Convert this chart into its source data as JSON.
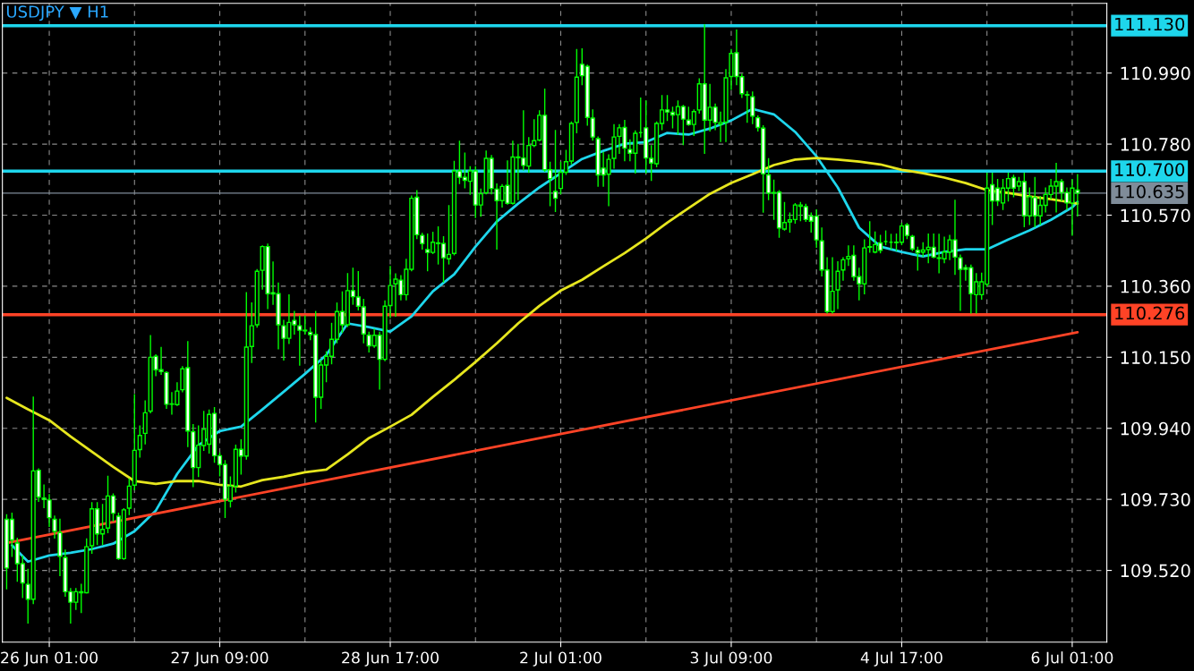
{
  "chart_data": {
    "type": "candlestick",
    "title": "USDJPY ▼ H1",
    "categories": [
      null,
      null,
      null,
      null,
      null,
      null,
      null,
      null,
      "26 Jun 01:00",
      null,
      null,
      null,
      null,
      null,
      null,
      null,
      null,
      null,
      null,
      null,
      null,
      null,
      null,
      null,
      null,
      null,
      null,
      null,
      null,
      null,
      null,
      null,
      null,
      null,
      null,
      null,
      null,
      null,
      null,
      null,
      "27 Jun 09:00",
      null,
      null,
      null,
      null,
      null,
      null,
      null,
      null,
      null,
      null,
      null,
      null,
      null,
      null,
      null,
      null,
      null,
      null,
      null,
      null,
      null,
      null,
      null,
      null,
      null,
      null,
      null,
      null,
      null,
      null,
      null,
      "28 Jun 17:00",
      null,
      null,
      null,
      null,
      null,
      null,
      null,
      null,
      null,
      null,
      null,
      null,
      null,
      null,
      null,
      null,
      null,
      null,
      null,
      null,
      null,
      null,
      null,
      null,
      null,
      null,
      null,
      null,
      null,
      null,
      null,
      "2 Jul 01:00",
      null,
      null,
      null,
      null,
      null,
      null,
      null,
      null,
      null,
      null,
      null,
      null,
      null,
      null,
      null,
      null,
      null,
      null,
      null,
      null,
      null,
      null,
      null,
      null,
      null,
      null,
      null,
      null,
      null,
      null,
      null,
      "3 Jul 09:00",
      null,
      null,
      null,
      null,
      null,
      null,
      null,
      null,
      null,
      null,
      null,
      null,
      null,
      null,
      null,
      null,
      null,
      null,
      null,
      null,
      null,
      null,
      null,
      null,
      null,
      null,
      null,
      null,
      null,
      null,
      null,
      "4 Jul 17:00",
      null,
      null,
      null,
      null,
      null,
      null,
      null,
      null,
      null,
      null,
      null,
      null,
      null,
      null,
      null,
      null,
      null,
      null,
      null,
      null,
      null,
      null,
      null,
      null,
      null,
      null,
      null,
      null,
      null,
      null,
      null,
      "6 Jul 01:00",
      null
    ],
    "ohlc": [
      [
        109.671,
        109.684,
        109.466,
        109.527
      ],
      [
        109.671,
        109.689,
        109.562,
        109.61
      ],
      [
        109.601,
        109.615,
        109.488,
        109.54
      ],
      [
        109.54,
        109.562,
        109.44,
        109.483
      ],
      [
        109.479,
        109.523,
        109.365,
        109.435
      ],
      [
        109.435,
        110.032,
        109.422,
        109.814
      ],
      [
        109.816,
        109.82,
        109.724,
        109.737
      ],
      [
        109.734,
        109.772,
        109.706,
        109.73
      ],
      [
        109.728,
        109.744,
        109.65,
        109.676
      ],
      [
        109.671,
        109.68,
        109.616,
        109.636
      ],
      [
        109.632,
        109.671,
        109.505,
        109.562
      ],
      [
        109.558,
        109.58,
        109.444,
        109.457
      ],
      [
        109.457,
        109.466,
        109.365,
        109.426
      ],
      [
        109.426,
        109.466,
        109.405,
        109.457
      ],
      [
        109.454,
        109.479,
        109.396,
        109.457
      ],
      [
        109.454,
        109.613,
        109.454,
        109.59
      ],
      [
        109.593,
        109.72,
        109.571,
        109.702
      ],
      [
        109.702,
        109.72,
        109.597,
        109.628
      ],
      [
        109.628,
        109.715,
        109.597,
        109.641
      ],
      [
        109.645,
        109.798,
        109.632,
        109.74
      ],
      [
        109.74,
        109.746,
        109.667,
        109.689
      ],
      [
        109.68,
        109.689,
        109.553,
        109.555
      ],
      [
        109.555,
        109.702,
        109.553,
        109.699
      ],
      [
        109.704,
        109.79,
        109.685,
        109.769
      ],
      [
        109.772,
        110.039,
        109.759,
        109.875
      ],
      [
        109.877,
        109.947,
        109.855,
        109.919
      ],
      [
        109.925,
        110.021,
        109.894,
        109.986
      ],
      [
        109.991,
        110.214,
        109.986,
        110.15
      ],
      [
        110.153,
        110.157,
        110.096,
        110.113
      ],
      [
        110.113,
        110.179,
        110.1,
        110.108
      ],
      [
        110.105,
        110.107,
        109.999,
        110.011
      ],
      [
        110.011,
        110.045,
        109.982,
        110.012
      ],
      [
        110.01,
        110.074,
        110.008,
        110.05
      ],
      [
        110.054,
        110.122,
        110.048,
        110.116
      ],
      [
        110.119,
        110.196,
        109.886,
        109.932
      ],
      [
        109.93,
        109.951,
        109.768,
        109.824
      ],
      [
        109.824,
        109.947,
        109.798,
        109.89
      ],
      [
        109.889,
        109.99,
        109.875,
        109.937
      ],
      [
        109.893,
        109.994,
        109.867,
        109.981
      ],
      [
        109.984,
        110.001,
        109.84,
        109.859
      ],
      [
        109.859,
        109.867,
        109.8,
        109.833
      ],
      [
        109.833,
        109.844,
        109.677,
        109.73
      ],
      [
        109.725,
        109.796,
        109.708,
        109.769
      ],
      [
        109.769,
        109.89,
        109.752,
        109.878
      ],
      [
        109.878,
        109.906,
        109.805,
        109.858
      ],
      [
        109.858,
        110.341,
        109.849,
        110.18
      ],
      [
        110.182,
        110.31,
        110.135,
        110.243
      ],
      [
        110.246,
        110.409,
        110.239,
        110.404
      ],
      [
        110.407,
        110.479,
        110.352,
        110.477
      ],
      [
        110.477,
        110.484,
        110.294,
        110.338
      ],
      [
        110.341,
        110.431,
        110.307,
        110.337
      ],
      [
        110.338,
        110.369,
        110.175,
        110.246
      ],
      [
        110.243,
        110.259,
        110.142,
        110.206
      ],
      [
        110.206,
        110.334,
        110.191,
        110.253
      ],
      [
        110.259,
        110.285,
        110.219,
        110.246
      ],
      [
        110.243,
        110.272,
        110.127,
        110.23
      ],
      [
        110.23,
        110.272,
        110.219,
        110.228
      ],
      [
        110.224,
        110.237,
        110.202,
        110.217
      ],
      [
        110.217,
        110.285,
        109.959,
        110.032
      ],
      [
        110.032,
        110.14,
        109.999,
        110.127
      ],
      [
        110.127,
        110.166,
        110.078,
        110.153
      ],
      [
        110.153,
        110.25,
        110.131,
        110.203
      ],
      [
        110.203,
        110.31,
        110.193,
        110.285
      ],
      [
        110.285,
        110.343,
        110.224,
        110.246
      ],
      [
        110.246,
        110.397,
        110.241,
        110.347
      ],
      [
        110.347,
        110.413,
        110.307,
        110.329
      ],
      [
        110.328,
        110.403,
        110.29,
        110.301
      ],
      [
        110.299,
        110.321,
        110.193,
        110.219
      ],
      [
        110.215,
        110.224,
        110.166,
        110.184
      ],
      [
        110.184,
        110.232,
        110.18,
        110.215
      ],
      [
        110.215,
        110.224,
        110.056,
        110.144
      ],
      [
        110.144,
        110.316,
        110.14,
        110.301
      ],
      [
        110.303,
        110.418,
        110.268,
        110.362
      ],
      [
        110.367,
        110.396,
        110.272,
        110.381
      ],
      [
        110.378,
        110.391,
        110.32,
        110.335
      ],
      [
        110.335,
        110.439,
        110.32,
        110.41
      ],
      [
        110.41,
        110.626,
        110.406,
        110.62
      ],
      [
        110.623,
        110.642,
        110.501,
        110.512
      ],
      [
        110.51,
        110.516,
        110.47,
        110.486
      ],
      [
        110.468,
        110.514,
        110.406,
        110.46
      ],
      [
        110.46,
        110.519,
        110.457,
        110.49
      ],
      [
        110.486,
        110.535,
        110.426,
        110.488
      ],
      [
        110.486,
        110.506,
        110.373,
        110.444
      ],
      [
        110.441,
        110.598,
        110.426,
        110.454
      ],
      [
        110.457,
        110.729,
        110.453,
        110.701
      ],
      [
        110.701,
        110.788,
        110.664,
        110.682
      ],
      [
        110.682,
        110.753,
        110.651,
        110.673
      ],
      [
        110.67,
        110.713,
        110.632,
        110.701
      ],
      [
        110.701,
        110.713,
        110.563,
        110.6
      ],
      [
        110.6,
        110.647,
        110.567,
        110.633
      ],
      [
        110.636,
        110.759,
        110.633,
        110.738
      ],
      [
        110.738,
        110.746,
        110.633,
        110.649
      ],
      [
        110.647,
        110.662,
        110.47,
        110.613
      ],
      [
        110.613,
        110.66,
        110.594,
        110.655
      ],
      [
        110.658,
        110.73,
        110.603,
        110.605
      ],
      [
        110.605,
        110.788,
        110.603,
        110.742
      ],
      [
        110.742,
        110.779,
        110.616,
        110.74
      ],
      [
        110.739,
        110.878,
        110.704,
        110.717
      ],
      [
        110.715,
        110.799,
        110.697,
        110.776
      ],
      [
        110.776,
        110.852,
        110.773,
        110.79
      ],
      [
        110.792,
        110.878,
        110.79,
        110.865
      ],
      [
        110.865,
        110.942,
        110.7,
        110.704
      ],
      [
        110.704,
        110.726,
        110.598,
        110.678
      ],
      [
        110.64,
        110.82,
        110.581,
        110.62
      ],
      [
        110.649,
        110.726,
        110.633,
        110.697
      ],
      [
        110.697,
        110.761,
        110.691,
        110.728
      ],
      [
        110.73,
        110.845,
        110.722,
        110.841
      ],
      [
        110.844,
        111.059,
        110.814,
        110.978
      ],
      [
        111.016,
        111.061,
        110.956,
        110.982
      ],
      [
        111.01,
        111.013,
        110.836,
        110.859
      ],
      [
        110.857,
        110.881,
        110.792,
        110.801
      ],
      [
        110.796,
        110.801,
        110.656,
        110.689
      ],
      [
        110.709,
        110.755,
        110.656,
        110.689
      ],
      [
        110.691,
        110.748,
        110.598,
        110.735
      ],
      [
        110.738,
        110.837,
        110.709,
        110.801
      ],
      [
        110.803,
        110.837,
        110.753,
        110.828
      ],
      [
        110.829,
        110.85,
        110.731,
        110.768
      ],
      [
        110.764,
        110.792,
        110.731,
        110.753
      ],
      [
        110.753,
        110.819,
        110.695,
        110.812
      ],
      [
        110.814,
        110.916,
        110.801,
        110.814
      ],
      [
        110.828,
        110.907,
        110.695,
        110.739
      ],
      [
        110.738,
        110.775,
        110.673,
        110.724
      ],
      [
        110.722,
        110.845,
        110.713,
        110.841
      ],
      [
        110.841,
        110.923,
        110.823,
        110.881
      ],
      [
        110.881,
        110.923,
        110.85,
        110.875
      ],
      [
        110.874,
        110.889,
        110.828,
        110.866
      ],
      [
        110.867,
        110.907,
        110.81,
        110.891
      ],
      [
        110.891,
        110.894,
        110.779,
        110.854
      ],
      [
        110.851,
        110.889,
        110.836,
        110.838
      ],
      [
        110.838,
        110.881,
        110.806,
        110.876
      ],
      [
        110.881,
        110.973,
        110.872,
        110.958
      ],
      [
        110.958,
        111.132,
        110.753,
        110.851
      ],
      [
        110.851,
        110.956,
        110.819,
        110.889
      ],
      [
        110.889,
        110.898,
        110.823,
        110.844
      ],
      [
        110.839,
        110.874,
        110.788,
        110.844
      ],
      [
        110.845,
        111.0,
        110.788,
        110.976
      ],
      [
        110.98,
        111.059,
        110.942,
        111.048
      ],
      [
        111.05,
        111.117,
        110.956,
        110.98
      ],
      [
        110.979,
        110.986,
        110.918,
        110.929
      ],
      [
        110.926,
        110.935,
        110.845,
        110.925
      ],
      [
        110.92,
        110.934,
        110.841,
        110.863
      ],
      [
        110.858,
        110.863,
        110.819,
        110.829
      ],
      [
        110.827,
        110.834,
        110.579,
        110.692
      ],
      [
        110.689,
        110.737,
        110.616,
        110.635
      ],
      [
        110.635,
        110.673,
        110.558,
        110.637
      ],
      [
        110.638,
        110.642,
        110.505,
        110.532
      ],
      [
        110.529,
        110.607,
        110.526,
        110.548
      ],
      [
        110.55,
        110.576,
        110.52,
        110.556
      ],
      [
        110.557,
        110.604,
        110.547,
        110.6
      ],
      [
        110.596,
        110.607,
        110.554,
        110.6
      ],
      [
        110.595,
        110.602,
        110.552,
        110.557
      ],
      [
        110.567,
        110.576,
        110.52,
        110.552
      ],
      [
        110.567,
        110.585,
        110.475,
        110.497
      ],
      [
        110.494,
        110.532,
        110.391,
        110.408
      ],
      [
        110.408,
        110.444,
        110.281,
        110.285
      ],
      [
        110.285,
        110.444,
        110.281,
        110.345
      ],
      [
        110.349,
        110.432,
        110.294,
        110.404
      ],
      [
        110.408,
        110.444,
        110.378,
        110.438
      ],
      [
        110.441,
        110.479,
        110.422,
        110.448
      ],
      [
        110.451,
        110.479,
        110.378,
        110.388
      ],
      [
        110.388,
        110.413,
        110.32,
        110.367
      ],
      [
        110.367,
        110.497,
        110.338,
        110.473
      ],
      [
        110.475,
        110.55,
        110.461,
        110.477
      ],
      [
        110.461,
        110.52,
        110.459,
        110.483
      ],
      [
        110.488,
        110.51,
        110.459,
        110.466
      ],
      [
        110.492,
        110.523,
        110.483,
        110.492
      ],
      [
        110.49,
        110.513,
        110.47,
        110.49
      ],
      [
        110.49,
        110.514,
        110.466,
        110.489
      ],
      [
        110.49,
        110.545,
        110.483,
        110.538
      ],
      [
        110.541,
        110.545,
        110.501,
        110.51
      ],
      [
        110.507,
        110.51,
        110.466,
        110.47
      ],
      [
        110.466,
        110.475,
        110.408,
        110.459
      ],
      [
        110.461,
        110.488,
        110.448,
        110.467
      ],
      [
        110.468,
        110.514,
        110.43,
        110.475
      ],
      [
        110.475,
        110.514,
        110.444,
        110.446
      ],
      [
        110.444,
        110.513,
        110.4,
        110.442
      ],
      [
        110.441,
        110.505,
        110.43,
        110.461
      ],
      [
        110.461,
        110.51,
        110.439,
        110.497
      ],
      [
        110.497,
        110.614,
        110.395,
        110.446
      ],
      [
        110.444,
        110.452,
        110.289,
        110.41
      ],
      [
        110.415,
        110.422,
        110.378,
        110.41
      ],
      [
        110.415,
        110.422,
        110.281,
        110.338
      ],
      [
        110.335,
        110.397,
        110.281,
        110.373
      ],
      [
        110.335,
        110.398,
        110.322,
        110.373
      ],
      [
        110.366,
        110.694,
        110.36,
        110.65
      ],
      [
        110.66,
        110.694,
        110.543,
        110.612
      ],
      [
        110.65,
        110.675,
        110.599,
        110.612
      ],
      [
        110.606,
        110.675,
        110.587,
        110.65
      ],
      [
        110.65,
        110.694,
        110.612,
        110.678
      ],
      [
        110.681,
        110.688,
        110.625,
        110.65
      ],
      [
        110.656,
        110.681,
        110.643,
        110.669
      ],
      [
        110.669,
        110.694,
        110.536,
        110.568
      ],
      [
        110.568,
        110.65,
        110.543,
        110.625
      ],
      [
        110.622,
        110.681,
        110.536,
        110.568
      ],
      [
        110.568,
        110.625,
        110.543,
        110.599
      ],
      [
        110.599,
        110.65,
        110.58,
        110.631
      ],
      [
        110.631,
        110.675,
        110.618,
        110.656
      ],
      [
        110.656,
        110.723,
        110.58,
        110.669
      ],
      [
        110.669,
        110.675,
        110.612,
        110.637
      ],
      [
        110.637,
        110.65,
        110.587,
        110.606
      ],
      [
        110.606,
        110.675,
        110.511,
        110.65
      ],
      [
        110.644,
        110.69,
        110.568,
        110.635
      ]
    ],
    "series": [
      {
        "type": "line",
        "color": "#1ed6ec",
        "values": [
          null,
          109.594,
          null,
          null,
          109.546,
          null,
          null,
          null,
          109.564,
          null,
          null,
          null,
          109.572,
          null,
          null,
          null,
          109.583,
          null,
          null,
          null,
          109.599,
          null,
          null,
          null,
          109.636,
          null,
          null,
          null,
          109.697,
          null,
          null,
          null,
          109.805,
          null,
          null,
          null,
          109.89,
          null,
          null,
          null,
          109.932,
          null,
          null,
          null,
          109.945,
          null,
          null,
          null,
          109.996,
          null,
          null,
          null,
          110.048,
          null,
          null,
          null,
          110.101,
          null,
          null,
          null,
          110.157,
          null,
          null,
          null,
          110.25,
          null,
          null,
          null,
          110.239,
          null,
          null,
          null,
          110.226,
          null,
          null,
          null,
          110.271,
          null,
          null,
          null,
          110.345,
          null,
          null,
          null,
          110.395,
          null,
          null,
          null,
          110.477,
          null,
          null,
          null,
          110.551,
          null,
          null,
          null,
          110.604,
          null,
          null,
          null,
          110.652,
          null,
          null,
          null,
          110.694,
          null,
          null,
          null,
          110.736,
          null,
          null,
          null,
          110.76,
          null,
          null,
          null,
          110.781,
          null,
          null,
          null,
          110.786,
          null,
          null,
          null,
          110.813,
          null,
          null,
          null,
          110.808,
          null,
          null,
          null,
          110.826,
          null,
          null,
          null,
          110.85,
          null,
          null,
          null,
          110.884,
          null,
          null,
          null,
          110.868,
          null,
          null,
          null,
          110.816,
          null,
          null,
          null,
          110.744,
          null,
          null,
          null,
          110.652,
          null,
          null,
          null,
          110.533,
          null,
          null,
          null,
          110.477,
          null,
          null,
          null,
          110.461,
          null,
          null,
          null,
          110.448,
          null,
          null,
          null,
          110.461,
          null,
          null,
          null,
          110.469,
          null,
          null,
          null,
          110.469,
          null,
          null,
          null,
          110.498,
          null,
          null,
          null,
          110.525,
          null,
          null,
          null,
          110.556,
          null,
          null,
          null,
          110.593,
          110.609
        ]
      },
      {
        "type": "line",
        "color": "#e6e61e",
        "values": [
          110.03,
          null,
          null,
          null,
          109.996,
          null,
          null,
          null,
          109.964,
          null,
          null,
          null,
          109.916,
          null,
          null,
          null,
          109.871,
          null,
          null,
          null,
          109.826,
          null,
          null,
          null,
          109.784,
          null,
          null,
          null,
          109.776,
          null,
          null,
          null,
          109.784,
          null,
          null,
          null,
          109.784,
          null,
          null,
          null,
          109.773,
          null,
          null,
          null,
          109.768,
          null,
          null,
          null,
          109.787,
          null,
          null,
          null,
          109.797,
          null,
          null,
          null,
          109.81,
          null,
          null,
          null,
          109.818,
          null,
          null,
          null,
          109.863,
          null,
          null,
          null,
          109.911,
          null,
          null,
          null,
          109.945,
          null,
          null,
          null,
          109.98,
          null,
          null,
          null,
          110.033,
          null,
          null,
          null,
          110.083,
          null,
          null,
          null,
          110.136,
          null,
          null,
          null,
          110.191,
          null,
          null,
          null,
          110.25,
          null,
          null,
          null,
          110.302,
          null,
          null,
          null,
          110.347,
          null,
          null,
          null,
          110.379,
          null,
          null,
          null,
          110.419,
          null,
          null,
          null,
          110.458,
          null,
          null,
          null,
          110.501,
          null,
          null,
          null,
          110.548,
          null,
          null,
          null,
          110.591,
          null,
          null,
          null,
          110.633,
          null,
          null,
          null,
          110.665,
          null,
          null,
          null,
          110.691,
          null,
          null,
          null,
          110.718,
          null,
          null,
          null,
          110.734,
          null,
          null,
          null,
          110.739,
          null,
          null,
          null,
          110.734,
          null,
          null,
          null,
          110.728,
          null,
          null,
          null,
          110.72,
          null,
          null,
          null,
          110.704,
          null,
          null,
          null,
          110.694,
          null,
          null,
          null,
          110.681,
          null,
          null,
          null,
          110.665,
          null,
          null,
          null,
          110.644,
          null,
          null,
          null,
          110.636,
          null,
          null,
          null,
          110.625,
          null,
          null,
          null,
          110.617,
          null,
          null,
          null,
          110.607,
          110.604
        ]
      },
      {
        "type": "line",
        "color": "#ff4326",
        "values": [
          109.601,
          null,
          null,
          null,
          null,
          null,
          null,
          null,
          null,
          null,
          null,
          null,
          null,
          null,
          null,
          null,
          null,
          null,
          null,
          null,
          null,
          null,
          null,
          null,
          null,
          null,
          null,
          null,
          null,
          null,
          null,
          null,
          null,
          null,
          null,
          null,
          null,
          null,
          null,
          null,
          null,
          null,
          null,
          null,
          null,
          null,
          null,
          null,
          null,
          null,
          null,
          null,
          null,
          null,
          null,
          null,
          null,
          null,
          null,
          null,
          null,
          null,
          null,
          null,
          null,
          null,
          null,
          null,
          null,
          null,
          null,
          null,
          null,
          null,
          null,
          null,
          null,
          null,
          null,
          null,
          null,
          null,
          null,
          null,
          null,
          null,
          null,
          null,
          null,
          null,
          null,
          null,
          null,
          null,
          null,
          null,
          null,
          null,
          null,
          null,
          null,
          null,
          null,
          null,
          null,
          null,
          null,
          null,
          null,
          null,
          null,
          null,
          null,
          null,
          null,
          null,
          null,
          null,
          null,
          null,
          null,
          null,
          null,
          null,
          null,
          null,
          null,
          null,
          null,
          null,
          null,
          null,
          null,
          null,
          null,
          null,
          null,
          null,
          null,
          null,
          null,
          null,
          null,
          null,
          null,
          null,
          null,
          null,
          null,
          null,
          null,
          null,
          null,
          null,
          null,
          null,
          null,
          null,
          null,
          null,
          null,
          null,
          null,
          null,
          null,
          null,
          null,
          null,
          null,
          null,
          null,
          null,
          null,
          null,
          null,
          null,
          null,
          null,
          null,
          null,
          null,
          null,
          null,
          null,
          null,
          null,
          null,
          null,
          null,
          null,
          null,
          null,
          null,
          null,
          null,
          null,
          null,
          null,
          null,
          null,
          null,
          110.224
        ]
      }
    ],
    "ylim": [
      109.308,
      111.196
    ],
    "yticks": [
      {
        "value": 109.52,
        "label": "109.520"
      },
      {
        "value": 109.73,
        "label": "109.730"
      },
      {
        "value": 109.94,
        "label": "109.940"
      },
      {
        "value": 110.15,
        "label": "110.150"
      },
      {
        "value": 110.36,
        "label": "110.360"
      },
      {
        "value": 110.57,
        "label": "110.570"
      },
      {
        "value": 110.78,
        "label": "110.780"
      },
      {
        "value": 110.99,
        "label": "110.990"
      }
    ],
    "ref_lines": [
      {
        "axis": "y",
        "value": 111.13,
        "label": "111.130",
        "color": "#1ed6ec"
      },
      {
        "axis": "y",
        "value": 110.7,
        "label": "110.700",
        "color": "#1ed6ec"
      },
      {
        "axis": "y",
        "value": 110.635,
        "label": "110.635",
        "color": "#7f8c99"
      },
      {
        "axis": "y",
        "value": 110.276,
        "label": "110.276",
        "color": "#ff4326"
      }
    ],
    "grid": true
  }
}
